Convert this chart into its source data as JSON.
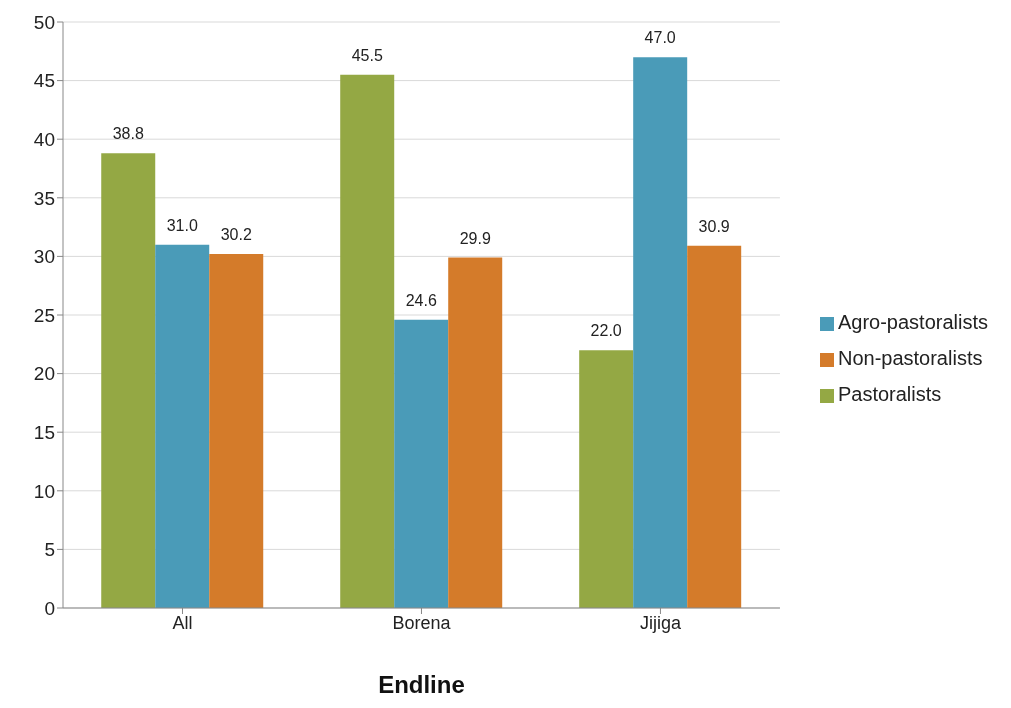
{
  "chart_data": {
    "type": "bar",
    "xlabel": "Endline",
    "categories": [
      "All",
      "Borena",
      "Jijiga"
    ],
    "series": [
      {
        "name": "Pastoralists",
        "color": "#94a844",
        "values": [
          38.8,
          45.5,
          22.0
        ],
        "value_labels": [
          "38.8",
          "45.5",
          "22.0"
        ]
      },
      {
        "name": "Agro-pastoralists",
        "color": "#4a9bb8",
        "values": [
          31.0,
          24.6,
          47.0
        ],
        "value_labels": [
          "31.0",
          "24.6",
          "47.0"
        ]
      },
      {
        "name": "Non-pastoralists",
        "color": "#d47b2a",
        "values": [
          30.2,
          29.9,
          30.9
        ],
        "value_labels": [
          "30.2",
          "29.9",
          "30.9"
        ]
      }
    ],
    "ylim": [
      0,
      50
    ],
    "yticks": [
      0,
      5,
      10,
      15,
      20,
      25,
      30,
      35,
      40,
      45,
      50
    ],
    "grid": "y",
    "legend": "right"
  }
}
